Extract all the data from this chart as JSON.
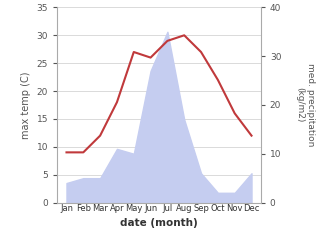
{
  "months": [
    "Jan",
    "Feb",
    "Mar",
    "Apr",
    "May",
    "Jun",
    "Jul",
    "Aug",
    "Sep",
    "Oct",
    "Nov",
    "Dec"
  ],
  "temperature": [
    9,
    9,
    12,
    18,
    27,
    26,
    29,
    30,
    27,
    22,
    16,
    12
  ],
  "precipitation": [
    4,
    5,
    5,
    11,
    10,
    27,
    35,
    17,
    6,
    2,
    2,
    6
  ],
  "temp_color": "#c0393b",
  "precip_fill_color": "#c5cdf0",
  "ylabel_left": "max temp (C)",
  "ylabel_right": "med. precipitation\n(kg/m2)",
  "xlabel": "date (month)",
  "ylim_left": [
    0,
    35
  ],
  "ylim_right": [
    0,
    40
  ],
  "yticks_left": [
    0,
    5,
    10,
    15,
    20,
    25,
    30,
    35
  ],
  "yticks_right": [
    0,
    10,
    20,
    30,
    40
  ],
  "grid_color": "#cccccc",
  "spine_color": "#aaaaaa",
  "tick_color": "#555555"
}
